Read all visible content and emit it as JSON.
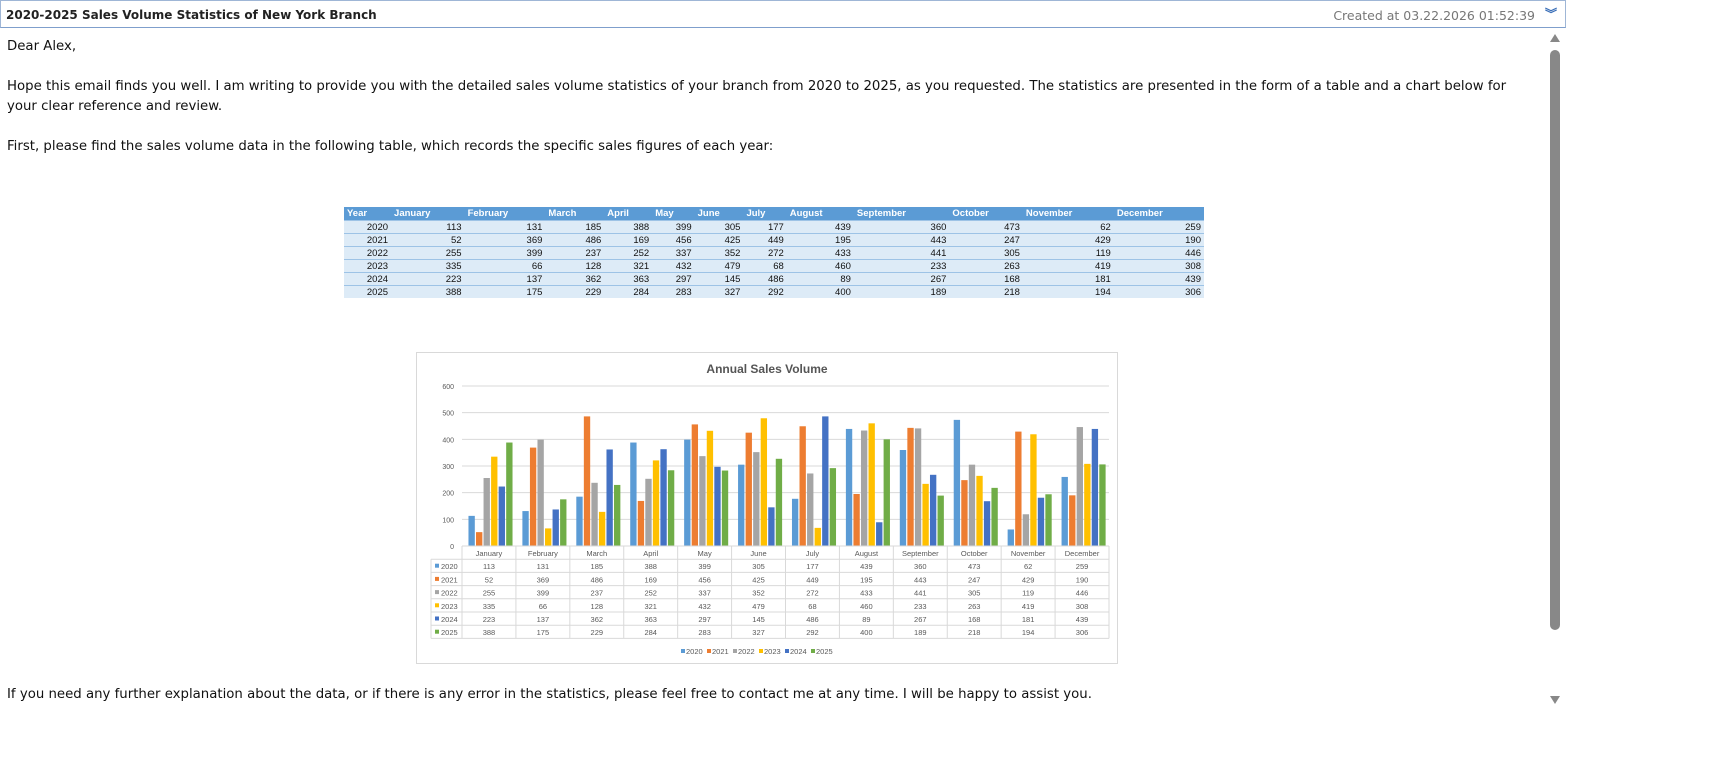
{
  "header": {
    "subject": "2020-2025 Sales Volume Statistics of New York Branch",
    "created": "Created at 03.22.2026 01:52:39",
    "expand_icon": "double-chevron-down-icon"
  },
  "body": {
    "greeting": "Dear Alex,",
    "para1": "Hope this email finds you well. I am writing to provide you with the detailed sales volume statistics of your branch from 2020 to 2025, as you requested. The statistics are presented in the form of a table and a chart below for your clear reference and review.",
    "para2": "First, please find the sales volume data in the following table, which records the specific sales figures of each year:",
    "closing": "If you need any further explanation about the data, or if there is any error in the statistics, please feel free to contact me at any time. I will be happy to assist you."
  },
  "table": {
    "headers": [
      "Year",
      "January",
      "February",
      "March",
      "April",
      "May",
      "June",
      "July",
      "August",
      "September",
      "October",
      "November",
      "December"
    ],
    "rows": [
      [
        "2020",
        "113",
        "131",
        "185",
        "388",
        "399",
        "305",
        "177",
        "439",
        "360",
        "473",
        "62",
        "259"
      ],
      [
        "2021",
        "52",
        "369",
        "486",
        "169",
        "456",
        "425",
        "449",
        "195",
        "443",
        "247",
        "429",
        "190"
      ],
      [
        "2022",
        "255",
        "399",
        "237",
        "252",
        "337",
        "352",
        "272",
        "433",
        "441",
        "305",
        "119",
        "446"
      ],
      [
        "2023",
        "335",
        "66",
        "128",
        "321",
        "432",
        "479",
        "68",
        "460",
        "233",
        "263",
        "419",
        "308"
      ],
      [
        "2024",
        "223",
        "137",
        "362",
        "363",
        "297",
        "145",
        "486",
        "89",
        "267",
        "168",
        "181",
        "439"
      ],
      [
        "2025",
        "388",
        "175",
        "229",
        "284",
        "283",
        "327",
        "292",
        "400",
        "189",
        "218",
        "194",
        "306"
      ]
    ]
  },
  "chart_data": {
    "type": "bar",
    "title": "Annual Sales Volume",
    "ylim": [
      0,
      600
    ],
    "yticks": [
      0,
      100,
      200,
      300,
      400,
      500,
      600
    ],
    "grid": true,
    "legend": "bottom",
    "categories": [
      "January",
      "February",
      "March",
      "April",
      "May",
      "June",
      "July",
      "August",
      "September",
      "October",
      "November",
      "December"
    ],
    "series": [
      {
        "name": "2020",
        "color": "#5b9bd5",
        "values": [
          113,
          131,
          185,
          388,
          399,
          305,
          177,
          439,
          360,
          473,
          62,
          259
        ]
      },
      {
        "name": "2021",
        "color": "#ed7d31",
        "values": [
          52,
          369,
          486,
          169,
          456,
          425,
          449,
          195,
          443,
          247,
          429,
          190
        ]
      },
      {
        "name": "2022",
        "color": "#a5a5a5",
        "values": [
          255,
          399,
          237,
          252,
          337,
          352,
          272,
          433,
          441,
          305,
          119,
          446
        ]
      },
      {
        "name": "2023",
        "color": "#ffc000",
        "values": [
          335,
          66,
          128,
          321,
          432,
          479,
          68,
          460,
          233,
          263,
          419,
          308
        ]
      },
      {
        "name": "2024",
        "color": "#4472c4",
        "values": [
          223,
          137,
          362,
          363,
          297,
          145,
          486,
          89,
          267,
          168,
          181,
          439
        ]
      },
      {
        "name": "2025",
        "color": "#70ad47",
        "values": [
          388,
          175,
          229,
          284,
          283,
          327,
          292,
          400,
          189,
          218,
          194,
          306
        ]
      }
    ]
  }
}
